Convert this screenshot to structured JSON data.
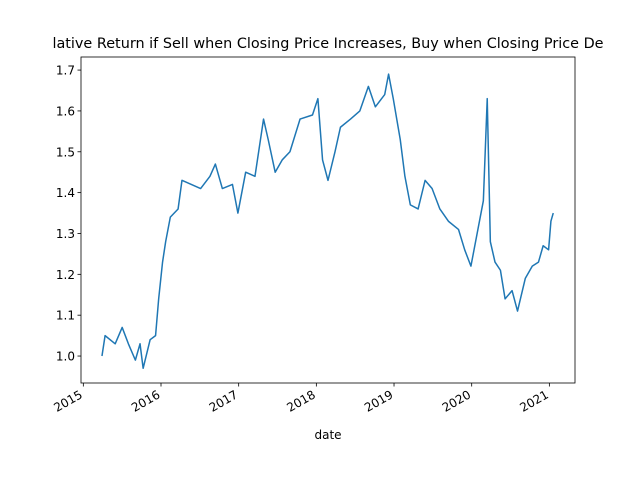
{
  "chart_data": {
    "type": "line",
    "title": "lative Return if Sell when Closing Price Increases, Buy when Closing Price De",
    "x_label": "date",
    "x": [
      2015.24,
      2015.28,
      2015.41,
      2015.5,
      2015.58,
      2015.67,
      2015.73,
      2015.77,
      2015.86,
      2015.93,
      2015.97,
      2016.02,
      2016.06,
      2016.12,
      2016.22,
      2016.27,
      2016.51,
      2016.63,
      2016.7,
      2016.79,
      2016.92,
      2016.99,
      2017.09,
      2017.21,
      2017.32,
      2017.38,
      2017.47,
      2017.56,
      2017.66,
      2017.79,
      2017.95,
      2018.02,
      2018.08,
      2018.15,
      2018.24,
      2018.31,
      2018.44,
      2018.56,
      2018.67,
      2018.76,
      2018.88,
      2018.93,
      2018.99,
      2019.08,
      2019.14,
      2019.21,
      2019.31,
      2019.4,
      2019.49,
      2019.59,
      2019.7,
      2019.83,
      2019.91,
      2019.99,
      2020.08,
      2020.15,
      2020.2,
      2020.24,
      2020.3,
      2020.37,
      2020.43,
      2020.52,
      2020.59,
      2020.69,
      2020.78,
      2020.86,
      2020.92,
      2020.99,
      2021.02,
      2021.05
    ],
    "series": [
      {
        "color": "#1f77b4",
        "values": [
          1.0,
          1.05,
          1.03,
          1.07,
          1.03,
          0.99,
          1.03,
          0.97,
          1.04,
          1.05,
          1.14,
          1.23,
          1.28,
          1.34,
          1.36,
          1.43,
          1.41,
          1.44,
          1.47,
          1.41,
          1.42,
          1.35,
          1.45,
          1.44,
          1.58,
          1.53,
          1.45,
          1.48,
          1.5,
          1.58,
          1.59,
          1.63,
          1.48,
          1.43,
          1.5,
          1.56,
          1.58,
          1.6,
          1.66,
          1.61,
          1.64,
          1.69,
          1.63,
          1.53,
          1.44,
          1.37,
          1.36,
          1.43,
          1.41,
          1.36,
          1.33,
          1.31,
          1.26,
          1.22,
          1.31,
          1.38,
          1.63,
          1.28,
          1.23,
          1.21,
          1.14,
          1.16,
          1.11,
          1.19,
          1.22,
          1.23,
          1.27,
          1.26,
          1.33,
          1.35
        ]
      }
    ],
    "xlim": [
      2014.97,
      2021.33
    ],
    "xticks": [
      2015,
      2016,
      2017,
      2018,
      2019,
      2020,
      2021
    ],
    "ylim": [
      0.934,
      1.732
    ],
    "yticks": [
      {
        "value": 1,
        "label": "1.0"
      },
      1.1,
      1.2,
      1.3,
      1.4,
      1.5,
      1.6,
      1.7
    ]
  }
}
